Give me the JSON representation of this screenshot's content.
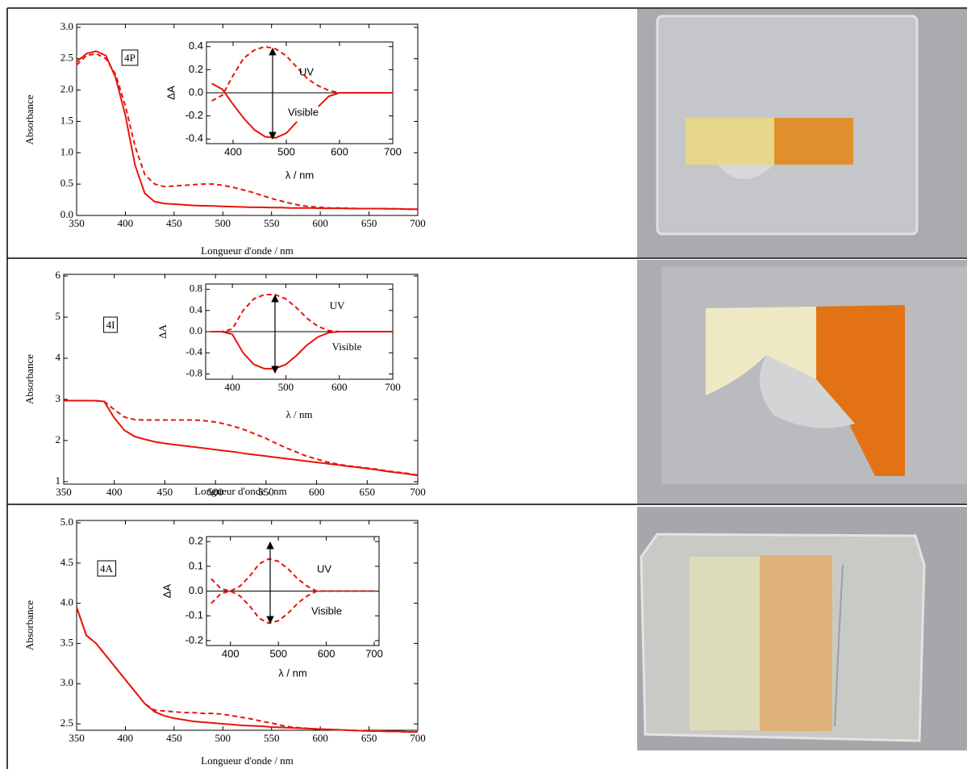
{
  "chart_data": [
    {
      "type": "line",
      "xlabel": "Longueur d'onde / nm",
      "ylabel": "Absorbance",
      "annotations": [
        "4P"
      ],
      "x": [
        350,
        360,
        370,
        380,
        390,
        400,
        410,
        420,
        430,
        440,
        450,
        460,
        470,
        480,
        490,
        500,
        510,
        520,
        530,
        540,
        550,
        560,
        570,
        580,
        590,
        600,
        610,
        620,
        630,
        640,
        650,
        660,
        670,
        680,
        690,
        700
      ],
      "series": [
        {
          "color": "#e8140c",
          "linestyle": "solid",
          "values": [
            2.45,
            2.58,
            2.62,
            2.55,
            2.2,
            1.6,
            0.8,
            0.35,
            0.22,
            0.19,
            0.18,
            0.17,
            0.16,
            0.155,
            0.15,
            0.145,
            0.14,
            0.135,
            0.13,
            0.13,
            0.125,
            0.125,
            0.12,
            0.12,
            0.12,
            0.115,
            0.115,
            0.115,
            0.11,
            0.11,
            0.11,
            0.11,
            0.105,
            0.105,
            0.1,
            0.1
          ]
        },
        {
          "color": "#e8140c",
          "linestyle": "dashed",
          "values": [
            2.4,
            2.55,
            2.58,
            2.5,
            2.25,
            1.75,
            1.1,
            0.65,
            0.5,
            0.46,
            0.47,
            0.48,
            0.49,
            0.5,
            0.5,
            0.48,
            0.45,
            0.41,
            0.37,
            0.32,
            0.27,
            0.23,
            0.19,
            0.16,
            0.14,
            0.13,
            0.12,
            0.12,
            0.115,
            0.11,
            0.11,
            0.11,
            0.105,
            0.105,
            0.1,
            0.1
          ]
        }
      ],
      "xlim": [
        350,
        700
      ],
      "xticks": [
        350,
        400,
        450,
        500,
        550,
        600,
        650,
        700
      ],
      "ylim": [
        0,
        3.05
      ],
      "yticks": [
        {
          "value": 0,
          "label": "0.0"
        },
        0.5,
        {
          "value": 1,
          "label": "1.0"
        },
        1.5,
        {
          "value": 2,
          "label": "2.0"
        },
        2.5,
        {
          "value": 3,
          "label": "3.0"
        }
      ]
    },
    {
      "type": "line",
      "xlabel": "λ / nm",
      "ylabel": "ΔA",
      "annotations": [
        "UV",
        "Visible"
      ],
      "zero_line": true,
      "x": [
        360,
        380,
        400,
        420,
        440,
        460,
        480,
        500,
        520,
        540,
        560,
        580,
        600,
        620,
        640,
        660,
        680,
        700
      ],
      "series": [
        {
          "color": "#e8140c",
          "linestyle": "solid",
          "values": [
            0.08,
            0.03,
            -0.1,
            -0.22,
            -0.32,
            -0.38,
            -0.39,
            -0.35,
            -0.25,
            null,
            -0.12,
            -0.03,
            0,
            0,
            0,
            0,
            0,
            0
          ]
        },
        {
          "color": "#e8140c",
          "linestyle": "dashed",
          "values": [
            -0.07,
            -0.02,
            0.15,
            0.3,
            0.37,
            0.4,
            0.38,
            0.32,
            0.22,
            0.12,
            0.06,
            0.02,
            0,
            0,
            0,
            0,
            0,
            0
          ]
        }
      ],
      "xlim": [
        350,
        700
      ],
      "xticks": [
        400,
        500,
        600,
        700
      ],
      "ylim": [
        -0.44,
        0.44
      ],
      "yticks": [
        -0.4,
        -0.2,
        {
          "value": 0,
          "label": "0.0"
        },
        0.2,
        0.4
      ]
    },
    {
      "type": "line",
      "xlabel": "Longueur d'onde / nm",
      "ylabel": "Absorbance",
      "annotations": [
        "4I"
      ],
      "x": [
        350,
        360,
        370,
        380,
        390,
        400,
        410,
        420,
        430,
        440,
        450,
        460,
        470,
        480,
        490,
        500,
        510,
        520,
        530,
        540,
        550,
        560,
        570,
        580,
        590,
        600,
        610,
        620,
        630,
        640,
        650,
        660,
        670,
        680,
        690,
        700
      ],
      "series": [
        {
          "color": "#e8140c",
          "linestyle": "solid",
          "values": [
            2.97,
            2.97,
            2.97,
            2.97,
            2.95,
            2.55,
            2.25,
            2.1,
            2.03,
            1.97,
            1.93,
            1.9,
            1.87,
            1.84,
            1.81,
            1.78,
            1.75,
            1.72,
            1.68,
            1.65,
            1.62,
            1.59,
            1.56,
            1.53,
            1.5,
            1.47,
            1.44,
            1.41,
            1.38,
            1.35,
            1.32,
            1.29,
            1.25,
            1.22,
            1.19,
            1.15
          ]
        },
        {
          "color": "#e8140c",
          "linestyle": "dashed",
          "values": [
            2.97,
            2.97,
            2.97,
            2.97,
            2.95,
            2.75,
            2.57,
            2.51,
            2.5,
            2.5,
            2.5,
            2.5,
            2.5,
            2.5,
            2.48,
            2.45,
            2.4,
            2.33,
            2.25,
            2.15,
            2.05,
            1.93,
            1.82,
            1.72,
            1.62,
            1.55,
            1.48,
            1.43,
            1.39,
            1.36,
            1.33,
            1.3,
            1.26,
            1.23,
            1.2,
            1.16
          ]
        }
      ],
      "xlim": [
        350,
        700
      ],
      "xticks": [
        350,
        400,
        450,
        500,
        550,
        600,
        650,
        700
      ],
      "ylim": [
        0.94,
        6.04
      ],
      "yticks": [
        1,
        2,
        3,
        4,
        5,
        6
      ]
    },
    {
      "type": "line",
      "xlabel": "λ / nm",
      "ylabel": "ΔA",
      "annotations": [
        "UV",
        "Visible"
      ],
      "zero_line": true,
      "x": [
        360,
        380,
        400,
        420,
        440,
        460,
        480,
        500,
        520,
        540,
        560,
        580,
        600,
        620,
        640,
        660,
        680,
        700
      ],
      "series": [
        {
          "color": "#e8140c",
          "linestyle": "solid",
          "values": [
            0,
            0,
            -0.05,
            -0.4,
            -0.62,
            -0.7,
            -0.7,
            -0.62,
            -0.45,
            -0.25,
            -0.1,
            -0.02,
            0,
            0,
            0,
            0,
            0,
            0
          ]
        },
        {
          "color": "#e8140c",
          "linestyle": "dashed",
          "values": [
            0,
            0,
            0.05,
            0.4,
            0.62,
            0.7,
            0.7,
            0.62,
            0.45,
            0.25,
            0.1,
            0.02,
            0,
            0,
            0,
            0,
            0,
            0
          ]
        }
      ],
      "xlim": [
        350,
        700
      ],
      "xticks": [
        400,
        500,
        600,
        700
      ],
      "ylim": [
        -0.9,
        0.9
      ],
      "yticks": [
        -0.8,
        -0.4,
        {
          "value": 0,
          "label": "0.0"
        },
        0.4,
        0.8
      ]
    },
    {
      "type": "line",
      "xlabel": "Longueur d'onde / nm",
      "ylabel": "Absorbance",
      "annotations": [
        "4A"
      ],
      "x": [
        350,
        360,
        370,
        380,
        390,
        400,
        410,
        420,
        430,
        440,
        450,
        460,
        470,
        480,
        490,
        500,
        510,
        520,
        530,
        540,
        550,
        560,
        570,
        580,
        590,
        600,
        610,
        620,
        630,
        640,
        650,
        660,
        670,
        680,
        690,
        700
      ],
      "series": [
        {
          "color": "#e8140c",
          "linestyle": "solid",
          "values": [
            3.95,
            3.6,
            3.5,
            3.35,
            3.2,
            3.05,
            2.9,
            2.75,
            2.65,
            2.6,
            2.57,
            2.55,
            2.53,
            2.52,
            2.51,
            2.5,
            2.49,
            2.48,
            2.475,
            2.47,
            2.46,
            2.455,
            2.45,
            2.445,
            2.44,
            2.435,
            2.43,
            2.425,
            2.42,
            2.415,
            2.41,
            2.41,
            2.405,
            2.405,
            2.4,
            2.4
          ]
        },
        {
          "color": "#e8140c",
          "linestyle": "dashed",
          "values": [
            3.95,
            3.6,
            3.5,
            3.35,
            3.2,
            3.05,
            2.9,
            2.75,
            2.67,
            2.66,
            2.65,
            2.64,
            2.64,
            2.63,
            2.63,
            2.62,
            2.6,
            2.58,
            2.56,
            2.53,
            2.51,
            2.48,
            2.46,
            2.45,
            2.44,
            2.43,
            2.43,
            2.425,
            2.42,
            2.415,
            2.41,
            2.41,
            2.405,
            2.405,
            2.4,
            2.4
          ]
        }
      ],
      "xlim": [
        350,
        700
      ],
      "xticks": [
        350,
        400,
        450,
        500,
        550,
        600,
        650,
        700
      ],
      "ylim": [
        2.42,
        5.03
      ],
      "yticks": [
        2.5,
        {
          "value": 3,
          "label": "3.0"
        },
        3.5,
        {
          "value": 4,
          "label": "4.0"
        },
        4.5,
        {
          "value": 5,
          "label": "5.0"
        }
      ]
    },
    {
      "type": "line",
      "xlabel": "λ / nm",
      "ylabel": "ΔA",
      "annotations": [
        "UV",
        "Visible"
      ],
      "zero_line": true,
      "x": [
        360,
        380,
        400,
        420,
        440,
        460,
        480,
        500,
        520,
        540,
        560,
        580,
        600,
        620,
        640,
        660,
        680,
        700
      ],
      "series": [
        {
          "color": "#e8140c",
          "linestyle": "dashed",
          "values": [
            0.05,
            0.01,
            0,
            0.02,
            0.06,
            0.11,
            0.13,
            0.12,
            0.09,
            0.05,
            0.02,
            0,
            0,
            0,
            0,
            0,
            0,
            0
          ]
        },
        {
          "color": "#e8140c",
          "linestyle": "dashed",
          "values": [
            -0.05,
            -0.01,
            0,
            -0.02,
            -0.06,
            -0.11,
            -0.13,
            -0.12,
            -0.09,
            -0.05,
            -0.02,
            0,
            0,
            0,
            0,
            0,
            0,
            0
          ]
        }
      ],
      "xlim": [
        350,
        710
      ],
      "xticks": [
        400,
        500,
        600,
        700
      ],
      "ylim": [
        -0.22,
        0.22
      ],
      "yticks": [
        -0.2,
        -0.1,
        {
          "value": 0,
          "label": "0.0"
        },
        0.1,
        0.2
      ]
    }
  ]
}
